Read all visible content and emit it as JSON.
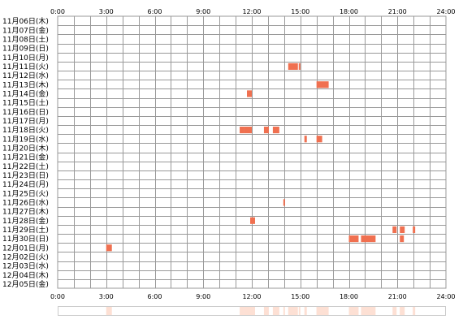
{
  "chart_data": {
    "type": "heatmap",
    "x_ticks": [
      "0:00",
      "3:00",
      "6:00",
      "9:00",
      "12:00",
      "15:00",
      "18:00",
      "21:00",
      "24:00"
    ],
    "xlim": [
      0,
      24
    ],
    "row_labels": [
      "11月06日(木)",
      "11月07日(金)",
      "11月08日(土)",
      "11月09日(日)",
      "11月10日(月)",
      "11月11日(火)",
      "11月12日(水)",
      "11月13日(木)",
      "11月14日(金)",
      "11月15日(土)",
      "11月16日(日)",
      "11月17日(月)",
      "11月18日(火)",
      "11月19日(水)",
      "11月20日(木)",
      "11月21日(金)",
      "11月22日(土)",
      "11月23日(日)",
      "11月24日(月)",
      "11月25日(火)",
      "11月26日(水)",
      "11月27日(木)",
      "11月28日(金)",
      "11月29日(土)",
      "11月30日(日)",
      "12月01日(月)",
      "12月02日(火)",
      "12月03日(水)",
      "12月04日(木)",
      "12月05日(金)"
    ],
    "grid": true,
    "bar_color": "#f07050",
    "summary_color": "#fde0d4",
    "grid_color": "#999999",
    "events": [
      {
        "row": 5,
        "start": 14.25,
        "end": 14.85
      },
      {
        "row": 5,
        "start": 14.9,
        "end": 15.0
      },
      {
        "row": 7,
        "start": 16.0,
        "end": 16.75
      },
      {
        "row": 8,
        "start": 11.7,
        "end": 12.0
      },
      {
        "row": 12,
        "start": 11.25,
        "end": 11.5
      },
      {
        "row": 12,
        "start": 11.5,
        "end": 12.0
      },
      {
        "row": 12,
        "start": 12.75,
        "end": 13.05
      },
      {
        "row": 12,
        "start": 13.3,
        "end": 13.7
      },
      {
        "row": 13,
        "start": 15.25,
        "end": 15.4
      },
      {
        "row": 13,
        "start": 16.0,
        "end": 16.35
      },
      {
        "row": 20,
        "start": 13.95,
        "end": 14.05
      },
      {
        "row": 22,
        "start": 11.9,
        "end": 12.2
      },
      {
        "row": 23,
        "start": 20.7,
        "end": 20.95
      },
      {
        "row": 23,
        "start": 21.15,
        "end": 21.45
      },
      {
        "row": 23,
        "start": 21.95,
        "end": 22.1
      },
      {
        "row": 24,
        "start": 18.0,
        "end": 18.6
      },
      {
        "row": 24,
        "start": 18.75,
        "end": 19.65
      },
      {
        "row": 24,
        "start": 21.15,
        "end": 21.4
      },
      {
        "row": 25,
        "start": 3.0,
        "end": 3.35
      }
    ]
  }
}
